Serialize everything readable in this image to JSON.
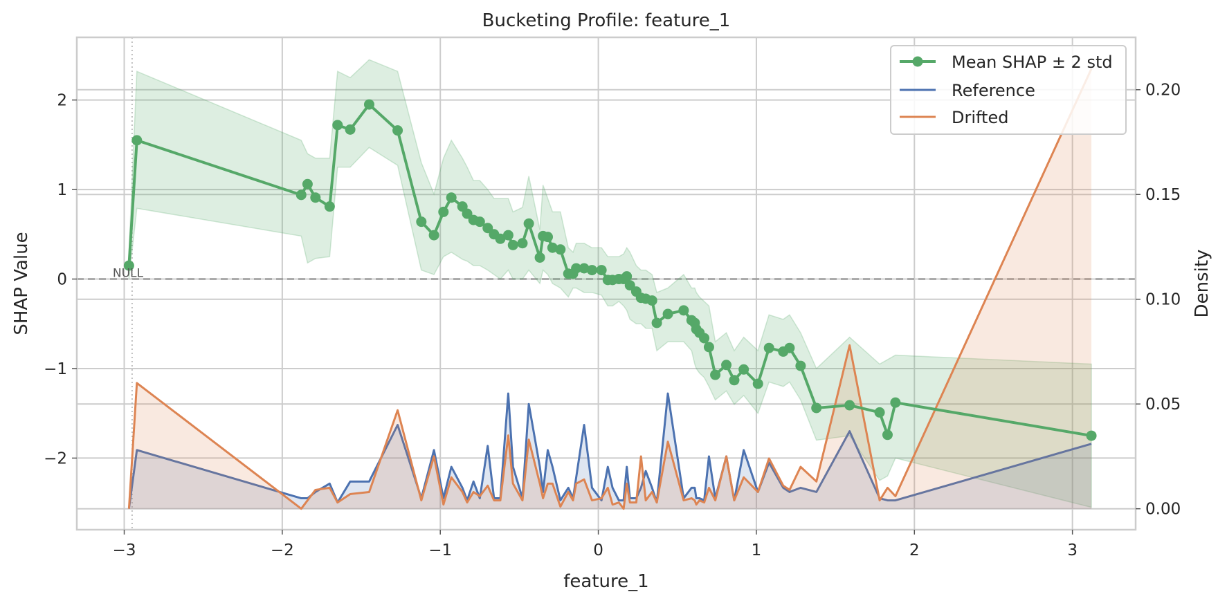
{
  "chart_data": {
    "type": "line",
    "title": "Bucketing Profile: feature_1",
    "xlabel": "feature_1",
    "ylabel": "SHAP Value",
    "ylabel_right": "Density",
    "xlim": [
      -3.3,
      3.4
    ],
    "ylim": [
      -2.8,
      2.7
    ],
    "ylim_right": [
      -0.01,
      0.225
    ],
    "x_ticks": [
      -3,
      -2,
      -1,
      0,
      1,
      2,
      3
    ],
    "x_tick_labels": [
      "−3",
      "−2",
      "−1",
      "0",
      "1",
      "2",
      "3"
    ],
    "y_ticks": [
      -2,
      -1,
      0,
      1,
      2
    ],
    "y_tick_labels": [
      "−2",
      "−1",
      "0",
      "1",
      "2"
    ],
    "y_right_ticks": [
      0.0,
      0.05,
      0.1,
      0.15,
      0.2
    ],
    "y_right_tick_labels": [
      "0.00",
      "0.05",
      "0.10",
      "0.15",
      "0.20"
    ],
    "grid": true,
    "legend_position": "top-right",
    "null_annotation": "NULL",
    "null_x": -2.95,
    "reference_line_y": 0,
    "colors": {
      "shap": "#55a868",
      "shap_band": "#55a868",
      "reference": "#4c72b0",
      "drifted": "#dd8452",
      "grid": "#cccccc",
      "zero_line": "#999999"
    },
    "series": [
      {
        "name": "Mean SHAP ± 2 std",
        "axis": "left",
        "x": [
          -2.97,
          -2.92,
          -1.88,
          -1.84,
          -1.79,
          -1.7,
          -1.65,
          -1.57,
          -1.45,
          -1.27,
          -1.12,
          -1.04,
          -0.98,
          -0.93,
          -0.86,
          -0.83,
          -0.79,
          -0.75,
          -0.7,
          -0.66,
          -0.62,
          -0.57,
          -0.54,
          -0.48,
          -0.44,
          -0.37,
          -0.35,
          -0.32,
          -0.29,
          -0.24,
          -0.19,
          -0.16,
          -0.14,
          -0.09,
          -0.04,
          0.02,
          0.06,
          0.09,
          0.13,
          0.16,
          0.18,
          0.2,
          0.24,
          0.27,
          0.3,
          0.34,
          0.37,
          0.44,
          0.54,
          0.59,
          0.61,
          0.62,
          0.64,
          0.67,
          0.7,
          0.74,
          0.81,
          0.86,
          0.92,
          1.01,
          1.08,
          1.17,
          1.21,
          1.28,
          1.38,
          1.59,
          1.78,
          1.83,
          1.88,
          3.12
        ],
        "y": [
          0.15,
          1.55,
          0.94,
          1.06,
          0.91,
          0.81,
          1.72,
          1.67,
          1.95,
          1.66,
          0.64,
          0.49,
          0.75,
          0.91,
          0.81,
          0.73,
          0.66,
          0.64,
          0.57,
          0.5,
          0.45,
          0.49,
          0.38,
          0.4,
          0.62,
          0.24,
          0.48,
          0.47,
          0.35,
          0.33,
          0.06,
          0.06,
          0.12,
          0.12,
          0.1,
          0.1,
          -0.01,
          -0.01,
          0.0,
          0.0,
          0.03,
          -0.07,
          -0.14,
          -0.21,
          -0.22,
          -0.24,
          -0.49,
          -0.39,
          -0.35,
          -0.46,
          -0.49,
          -0.56,
          -0.6,
          -0.66,
          -0.76,
          -1.07,
          -0.96,
          -1.13,
          -1.01,
          -1.17,
          -0.77,
          -0.81,
          -0.77,
          -0.97,
          -1.44,
          -1.41,
          -1.49,
          -1.74,
          -1.38,
          -1.75
        ],
        "band_low": [
          0.0,
          0.79,
          0.48,
          0.18,
          0.23,
          0.25,
          1.25,
          1.25,
          1.47,
          1.27,
          0.1,
          0.05,
          0.25,
          0.3,
          0.22,
          0.2,
          0.15,
          0.15,
          0.1,
          0.05,
          0.0,
          0.1,
          0.0,
          0.0,
          0.1,
          -0.05,
          0.1,
          0.05,
          -0.05,
          -0.1,
          -0.2,
          -0.1,
          -0.1,
          -0.15,
          -0.15,
          -0.18,
          -0.3,
          -0.3,
          -0.25,
          -0.3,
          -0.35,
          -0.45,
          -0.5,
          -0.5,
          -0.55,
          -0.55,
          -0.8,
          -0.7,
          -0.7,
          -0.8,
          -0.95,
          -1.0,
          -1.05,
          -1.1,
          -1.2,
          -1.35,
          -1.25,
          -1.4,
          -1.3,
          -1.5,
          -1.15,
          -1.2,
          -1.15,
          -1.35,
          -1.8,
          -1.75,
          -2.25,
          -2.2,
          -2.0,
          -2.55
        ],
        "band_high": [
          0.3,
          2.32,
          1.55,
          1.4,
          1.35,
          1.35,
          2.32,
          2.25,
          2.45,
          2.32,
          1.3,
          0.95,
          1.35,
          1.55,
          1.35,
          1.25,
          1.1,
          1.1,
          1.0,
          0.9,
          0.9,
          0.9,
          0.75,
          0.8,
          1.15,
          0.55,
          1.05,
          0.9,
          0.75,
          0.75,
          0.35,
          0.3,
          0.4,
          0.4,
          0.35,
          0.35,
          0.25,
          0.25,
          0.25,
          0.28,
          0.35,
          0.3,
          0.15,
          0.1,
          0.1,
          0.05,
          -0.15,
          -0.1,
          0.05,
          -0.1,
          -0.1,
          -0.15,
          -0.2,
          -0.25,
          -0.3,
          -0.7,
          -0.6,
          -0.8,
          -0.65,
          -0.8,
          -0.4,
          -0.45,
          -0.4,
          -0.6,
          -1.0,
          -0.65,
          -0.95,
          -0.9,
          -0.85,
          -0.95
        ]
      },
      {
        "name": "Reference",
        "axis": "right",
        "x": [
          -2.97,
          -2.92,
          -1.88,
          -1.84,
          -1.79,
          -1.7,
          -1.65,
          -1.57,
          -1.45,
          -1.27,
          -1.12,
          -1.04,
          -0.98,
          -0.93,
          -0.86,
          -0.83,
          -0.79,
          -0.75,
          -0.7,
          -0.66,
          -0.62,
          -0.57,
          -0.54,
          -0.48,
          -0.44,
          -0.37,
          -0.35,
          -0.32,
          -0.29,
          -0.24,
          -0.19,
          -0.16,
          -0.14,
          -0.09,
          -0.04,
          0.02,
          0.06,
          0.09,
          0.13,
          0.16,
          0.18,
          0.2,
          0.24,
          0.27,
          0.3,
          0.34,
          0.37,
          0.44,
          0.54,
          0.59,
          0.61,
          0.62,
          0.64,
          0.67,
          0.7,
          0.74,
          0.81,
          0.86,
          0.92,
          1.01,
          1.08,
          1.17,
          1.21,
          1.28,
          1.38,
          1.59,
          1.78,
          1.83,
          1.88,
          3.12
        ],
        "y": [
          0.0,
          0.028,
          0.005,
          0.005,
          0.008,
          0.012,
          0.003,
          0.013,
          0.013,
          0.04,
          0.005,
          0.028,
          0.005,
          0.02,
          0.01,
          0.004,
          0.013,
          0.005,
          0.03,
          0.005,
          0.005,
          0.055,
          0.02,
          0.005,
          0.05,
          0.02,
          0.008,
          0.028,
          0.02,
          0.004,
          0.01,
          0.005,
          0.015,
          0.04,
          0.01,
          0.004,
          0.02,
          0.01,
          0.004,
          0.004,
          0.02,
          0.005,
          0.005,
          0.01,
          0.018,
          0.01,
          0.003,
          0.055,
          0.005,
          0.01,
          0.01,
          0.005,
          0.005,
          0.004,
          0.025,
          0.005,
          0.025,
          0.004,
          0.028,
          0.008,
          0.022,
          0.01,
          0.008,
          0.01,
          0.008,
          0.037,
          0.005,
          0.004,
          0.004,
          0.031
        ]
      },
      {
        "name": "Drifted",
        "axis": "right",
        "x": [
          -2.97,
          -2.92,
          -1.88,
          -1.84,
          -1.79,
          -1.7,
          -1.65,
          -1.57,
          -1.45,
          -1.27,
          -1.12,
          -1.04,
          -0.98,
          -0.93,
          -0.86,
          -0.83,
          -0.79,
          -0.75,
          -0.7,
          -0.66,
          -0.62,
          -0.57,
          -0.54,
          -0.48,
          -0.44,
          -0.37,
          -0.35,
          -0.32,
          -0.29,
          -0.24,
          -0.19,
          -0.16,
          -0.14,
          -0.09,
          -0.04,
          0.02,
          0.06,
          0.09,
          0.13,
          0.16,
          0.18,
          0.2,
          0.24,
          0.27,
          0.3,
          0.34,
          0.37,
          0.44,
          0.54,
          0.59,
          0.61,
          0.62,
          0.64,
          0.67,
          0.7,
          0.74,
          0.81,
          0.86,
          0.92,
          1.01,
          1.08,
          1.17,
          1.21,
          1.28,
          1.38,
          1.59,
          1.78,
          1.83,
          1.88,
          3.12
        ],
        "y": [
          0.0,
          0.06,
          0.0,
          0.004,
          0.009,
          0.01,
          0.003,
          0.007,
          0.008,
          0.047,
          0.004,
          0.025,
          0.002,
          0.015,
          0.008,
          0.003,
          0.008,
          0.006,
          0.011,
          0.004,
          0.004,
          0.035,
          0.012,
          0.004,
          0.033,
          0.012,
          0.005,
          0.012,
          0.012,
          0.001,
          0.008,
          0.004,
          0.012,
          0.014,
          0.004,
          0.005,
          0.01,
          0.002,
          0.003,
          0.0,
          0.012,
          0.003,
          0.003,
          0.025,
          0.004,
          0.008,
          0.003,
          0.032,
          0.004,
          0.005,
          0.004,
          0.002,
          0.004,
          0.003,
          0.01,
          0.004,
          0.025,
          0.004,
          0.015,
          0.008,
          0.024,
          0.011,
          0.009,
          0.02,
          0.013,
          0.078,
          0.004,
          0.01,
          0.006,
          0.21
        ]
      }
    ]
  }
}
